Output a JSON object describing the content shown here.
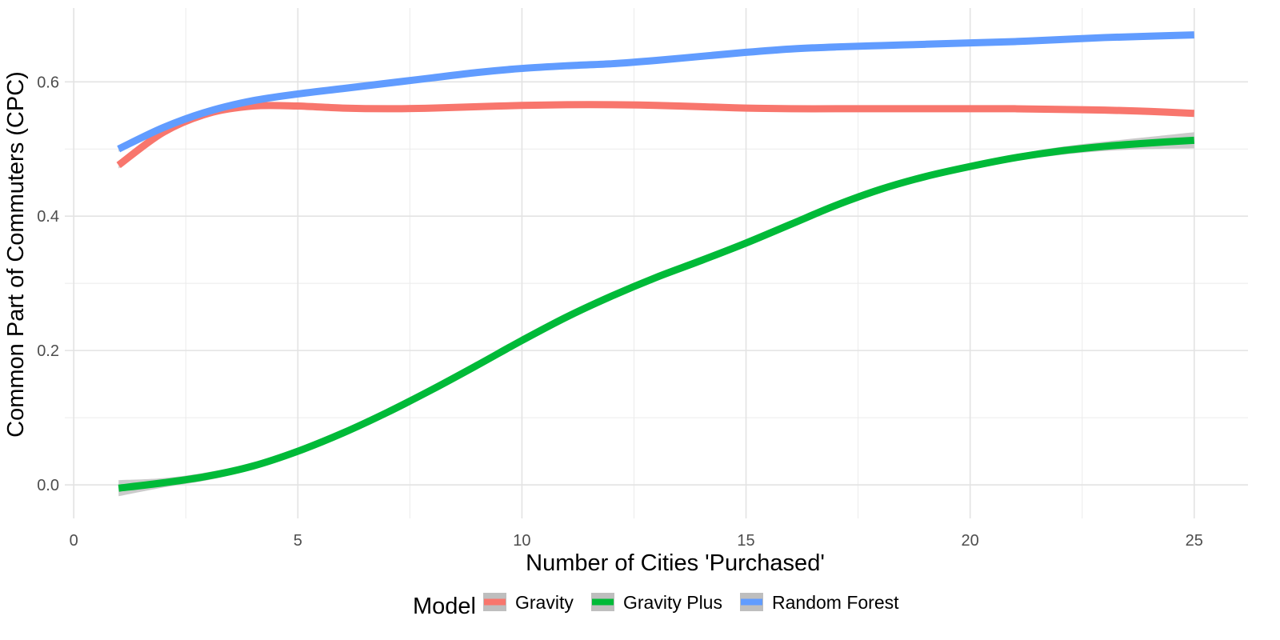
{
  "chart_data": {
    "type": "line",
    "xlabel": "Number of Cities 'Purchased'",
    "ylabel": "Common Part of Commuters (CPC)",
    "xlim": [
      -0.2,
      26.2
    ],
    "ylim": [
      -0.05,
      0.71
    ],
    "x_ticks": [
      0,
      5,
      10,
      15,
      20,
      25
    ],
    "x_tick_labels": [
      "0",
      "5",
      "10",
      "15",
      "20",
      "25"
    ],
    "y_ticks": [
      0.0,
      0.2,
      0.4,
      0.6
    ],
    "y_tick_labels": [
      "0.0",
      "0.2",
      "0.4",
      "0.6"
    ],
    "grid": true,
    "legend": {
      "title": "Model",
      "position": "bottom"
    },
    "x": [
      1,
      2,
      3,
      4,
      5,
      6,
      7,
      8,
      9,
      10,
      11,
      12,
      13,
      14,
      15,
      16,
      17,
      18,
      19,
      20,
      21,
      22,
      23,
      24,
      25
    ],
    "series": [
      {
        "name": "Gravity",
        "color": "#f8766d",
        "values": [
          0.476,
          0.525,
          0.553,
          0.564,
          0.564,
          0.561,
          0.56,
          0.561,
          0.563,
          0.565,
          0.566,
          0.566,
          0.565,
          0.563,
          0.561,
          0.56,
          0.56,
          0.56,
          0.56,
          0.56,
          0.56,
          0.559,
          0.558,
          0.556,
          0.553
        ],
        "ci_half_width": [
          0.005,
          0.004,
          0.004,
          0.004,
          0.004,
          0.004,
          0.004,
          0.004,
          0.004,
          0.004,
          0.004,
          0.004,
          0.004,
          0.004,
          0.004,
          0.004,
          0.004,
          0.004,
          0.004,
          0.004,
          0.004,
          0.004,
          0.004,
          0.004,
          0.005
        ]
      },
      {
        "name": "Gravity Plus",
        "color": "#00ba38",
        "values": [
          -0.005,
          0.003,
          0.013,
          0.028,
          0.05,
          0.077,
          0.108,
          0.142,
          0.178,
          0.215,
          0.25,
          0.281,
          0.309,
          0.334,
          0.36,
          0.388,
          0.416,
          0.44,
          0.459,
          0.474,
          0.487,
          0.497,
          0.504,
          0.509,
          0.513
        ],
        "ci_half_width": [
          0.012,
          0.007,
          0.006,
          0.005,
          0.005,
          0.005,
          0.005,
          0.005,
          0.005,
          0.005,
          0.005,
          0.005,
          0.005,
          0.005,
          0.005,
          0.005,
          0.005,
          0.005,
          0.005,
          0.005,
          0.005,
          0.006,
          0.007,
          0.009,
          0.012
        ]
      },
      {
        "name": "Random Forest",
        "color": "#619cff",
        "values": [
          0.5,
          0.532,
          0.556,
          0.572,
          0.582,
          0.59,
          0.598,
          0.606,
          0.614,
          0.62,
          0.624,
          0.627,
          0.632,
          0.638,
          0.644,
          0.649,
          0.652,
          0.654,
          0.656,
          0.658,
          0.66,
          0.663,
          0.666,
          0.668,
          0.67
        ],
        "ci_half_width": [
          0.004,
          0.004,
          0.004,
          0.004,
          0.004,
          0.004,
          0.004,
          0.004,
          0.004,
          0.004,
          0.004,
          0.004,
          0.004,
          0.004,
          0.004,
          0.004,
          0.004,
          0.004,
          0.004,
          0.004,
          0.004,
          0.004,
          0.004,
          0.004,
          0.004
        ]
      }
    ],
    "ci_color": "#bebebe"
  }
}
